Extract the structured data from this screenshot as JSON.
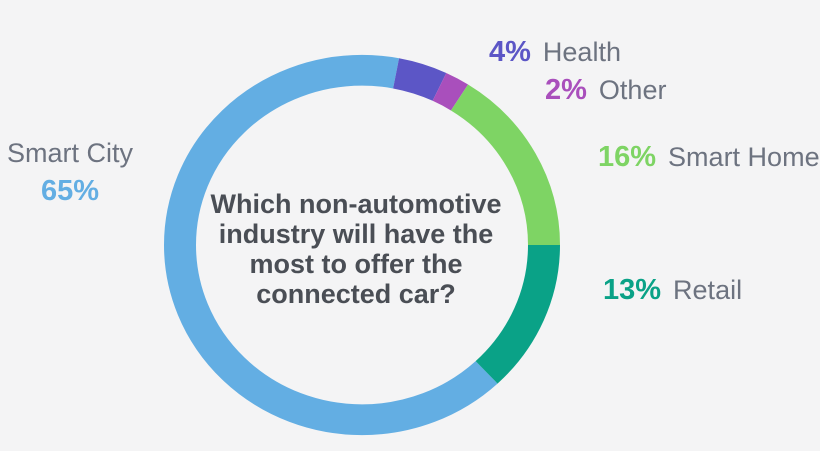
{
  "colors": {
    "background": "#f4f4f5",
    "label_text": "#6d7380",
    "question_text": "#4a4e55"
  },
  "chart_data": {
    "type": "pie",
    "donut": true,
    "title": "Which non-automotive industry will have the most to offer the connected car?",
    "center_question_lines": [
      "Which non-automotive",
      "industry will have the",
      "most to offer the",
      "connected car?"
    ],
    "units": "%",
    "direction": "clockwise",
    "start_reference": "12 o'clock",
    "rotation_offset_percent": 38,
    "legend_position": "around chart",
    "segments": [
      {
        "name": "Smart City",
        "value": 65,
        "pct": "65%",
        "color": "#63aee3"
      },
      {
        "name": "Health",
        "value": 4,
        "pct": "4%",
        "color": "#5c56c6"
      },
      {
        "name": "Other",
        "value": 2,
        "pct": "2%",
        "color": "#a94fbc"
      },
      {
        "name": "Smart Home",
        "value": 16,
        "pct": "16%",
        "color": "#7ed464"
      },
      {
        "name": "Retail",
        "value": 13,
        "pct": "13%",
        "color": "#0aa287"
      }
    ]
  }
}
